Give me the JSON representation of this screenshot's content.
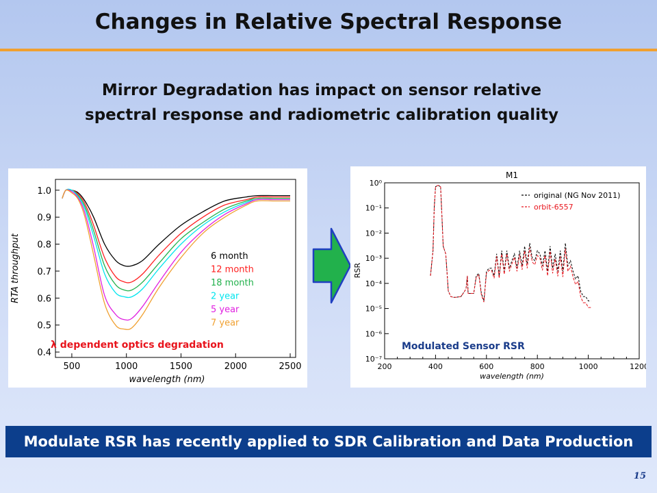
{
  "slide": {
    "title": "Changes in Relative Spectral Response",
    "subtitle_line1": "Mirror Degradation has impact on sensor relative",
    "subtitle_line2": "spectral response and radiometric calibration quality",
    "bottom_banner": "Modulate RSR has recently applied to SDR Calibration and Data Production",
    "page_number": "15",
    "colors": {
      "title_rule": "#f0a030",
      "banner_bg": "#0c3e8c",
      "arrow": "#22b14c",
      "arrow_outline": "#2040c0"
    },
    "arrow_icon": "right-arrow-icon"
  },
  "chart_data": [
    {
      "type": "line",
      "xlabel": "wavelength (nm)",
      "ylabel": "RTA throughput",
      "xlim": [
        350,
        2550
      ],
      "ylim": [
        0.38,
        1.04
      ],
      "xticks": [
        "500",
        "1000",
        "1500",
        "2000",
        "2500"
      ],
      "xtick_values": [
        500,
        1000,
        1500,
        2000,
        2500
      ],
      "yticks": [
        "0.4",
        "0.5",
        "0.6",
        "0.7",
        "0.8",
        "0.9",
        "1.0"
      ],
      "ytick_values": [
        0.4,
        0.5,
        0.6,
        0.7,
        0.8,
        0.9,
        1.0
      ],
      "annotation": "λ dependent optics degradation",
      "annotation_color": "#e8141c",
      "legend_position": "right-center",
      "series": [
        {
          "name": "6 month",
          "color": "#000000",
          "x": [
            412,
            445,
            500,
            560,
            620,
            700,
            800,
            900,
            980,
            1050,
            1150,
            1300,
            1500,
            1700,
            1900,
            2100,
            2200,
            2350,
            2500
          ],
          "y": [
            0.97,
            1.0,
            1.0,
            0.99,
            0.96,
            0.9,
            0.8,
            0.74,
            0.72,
            0.72,
            0.74,
            0.8,
            0.87,
            0.92,
            0.96,
            0.975,
            0.98,
            0.98,
            0.98
          ]
        },
        {
          "name": "12 month",
          "color": "#ff2020",
          "x": [
            412,
            445,
            500,
            560,
            620,
            700,
            800,
            900,
            980,
            1050,
            1150,
            1300,
            1500,
            1700,
            1900,
            2100,
            2200,
            2350,
            2500
          ],
          "y": [
            0.97,
            1.0,
            1.0,
            0.985,
            0.95,
            0.87,
            0.75,
            0.68,
            0.66,
            0.66,
            0.69,
            0.76,
            0.84,
            0.9,
            0.945,
            0.965,
            0.975,
            0.975,
            0.975
          ]
        },
        {
          "name": "18 month",
          "color": "#22b14c",
          "x": [
            412,
            445,
            500,
            560,
            620,
            700,
            800,
            900,
            980,
            1050,
            1150,
            1300,
            1500,
            1700,
            1900,
            2100,
            2200,
            2350,
            2500
          ],
          "y": [
            0.97,
            1.0,
            1.0,
            0.98,
            0.94,
            0.85,
            0.72,
            0.65,
            0.63,
            0.63,
            0.66,
            0.73,
            0.82,
            0.88,
            0.93,
            0.96,
            0.97,
            0.97,
            0.97
          ]
        },
        {
          "name": "2 year",
          "color": "#00e5ee",
          "x": [
            412,
            445,
            500,
            560,
            620,
            700,
            800,
            900,
            980,
            1050,
            1150,
            1300,
            1500,
            1700,
            1900,
            2100,
            2200,
            2350,
            2500
          ],
          "y": [
            0.97,
            1.0,
            1.0,
            0.975,
            0.93,
            0.83,
            0.69,
            0.62,
            0.605,
            0.605,
            0.635,
            0.71,
            0.8,
            0.87,
            0.92,
            0.955,
            0.965,
            0.965,
            0.965
          ]
        },
        {
          "name": "5 year",
          "color": "#e020e0",
          "x": [
            412,
            445,
            500,
            560,
            620,
            700,
            800,
            900,
            980,
            1050,
            1150,
            1300,
            1500,
            1700,
            1900,
            2100,
            2200,
            2350,
            2500
          ],
          "y": [
            0.97,
            1.0,
            0.995,
            0.97,
            0.915,
            0.79,
            0.61,
            0.54,
            0.52,
            0.525,
            0.57,
            0.66,
            0.77,
            0.85,
            0.91,
            0.95,
            0.965,
            0.965,
            0.965
          ]
        },
        {
          "name": "7 year",
          "color": "#f0a030",
          "x": [
            412,
            445,
            500,
            560,
            620,
            700,
            800,
            900,
            980,
            1050,
            1150,
            1300,
            1500,
            1700,
            1900,
            2100,
            2200,
            2350,
            2500
          ],
          "y": [
            0.97,
            1.0,
            0.99,
            0.965,
            0.9,
            0.76,
            0.58,
            0.5,
            0.485,
            0.49,
            0.54,
            0.64,
            0.75,
            0.84,
            0.9,
            0.945,
            0.96,
            0.96,
            0.96
          ]
        }
      ]
    },
    {
      "type": "line",
      "title": "M1",
      "xlabel": "wavelength (nm)",
      "ylabel": "RSR",
      "yscale": "log",
      "xlim": [
        200,
        1200
      ],
      "ylim": [
        1e-07,
        1
      ],
      "xticks": [
        "200",
        "400",
        "600",
        "800",
        "1000",
        "1200"
      ],
      "xtick_values": [
        200,
        400,
        600,
        800,
        1000,
        1200
      ],
      "yticks": [
        "10⁻⁷",
        "10⁻⁶",
        "10⁻⁵",
        "10⁻⁴",
        "10⁻³",
        "10⁻²",
        "10⁻¹",
        "10⁰"
      ],
      "ytick_values": [
        1e-07,
        1e-06,
        1e-05,
        0.0001,
        0.001,
        0.01,
        0.1,
        1
      ],
      "annotation": "Modulated Sensor RSR",
      "annotation_color": "#1a3c8a",
      "legend_position": "top-right",
      "series": [
        {
          "name": "original (NG Nov 2011)",
          "color": "#000000",
          "x": [
            380,
            390,
            395,
            400,
            410,
            420,
            425,
            430,
            440,
            445,
            450,
            460,
            470,
            480,
            500,
            520,
            525,
            528,
            535,
            550,
            560,
            570,
            580,
            590,
            600,
            610,
            620,
            630,
            640,
            650,
            660,
            670,
            680,
            690,
            700,
            710,
            720,
            730,
            740,
            750,
            760,
            770,
            780,
            790,
            800,
            810,
            820,
            830,
            840,
            850,
            860,
            870,
            880,
            890,
            900,
            910,
            920,
            930,
            940,
            950,
            960,
            970,
            980,
            990,
            1000,
            1010
          ],
          "y": [
            0.0002,
            0.002,
            0.1,
            0.7,
            0.8,
            0.7,
            0.05,
            0.003,
            0.0015,
            0.0003,
            5e-05,
            3e-05,
            2.8e-05,
            2.8e-05,
            3e-05,
            6e-05,
            0.0002,
            4e-05,
            4e-05,
            4e-05,
            0.0002,
            0.00025,
            4e-05,
            2e-05,
            0.0003,
            0.0004,
            0.0004,
            0.0002,
            0.0015,
            0.0002,
            0.002,
            0.0003,
            0.002,
            0.0004,
            0.0008,
            0.0015,
            0.0004,
            0.002,
            0.0005,
            0.003,
            0.0006,
            0.004,
            0.001,
            0.0008,
            0.002,
            0.0015,
            0.0005,
            0.002,
            0.0003,
            0.003,
            0.0004,
            0.0015,
            0.0003,
            0.002,
            0.0003,
            0.004,
            0.0005,
            0.0008,
            0.0003,
            0.00015,
            0.0002,
            5e-05,
            3e-05,
            3e-05,
            2e-05,
            2e-05
          ]
        },
        {
          "name": "orbit-6557",
          "color": "#e8141c",
          "x": [
            380,
            390,
            395,
            400,
            410,
            420,
            425,
            430,
            440,
            445,
            450,
            460,
            470,
            480,
            500,
            520,
            525,
            528,
            535,
            550,
            560,
            570,
            580,
            590,
            600,
            610,
            620,
            630,
            640,
            650,
            660,
            670,
            680,
            690,
            700,
            710,
            720,
            730,
            740,
            750,
            760,
            770,
            780,
            790,
            800,
            810,
            820,
            830,
            840,
            850,
            860,
            870,
            880,
            890,
            900,
            910,
            920,
            930,
            940,
            950,
            960,
            970,
            980,
            990,
            1000,
            1010
          ],
          "y": [
            0.0002,
            0.002,
            0.1,
            0.7,
            0.8,
            0.7,
            0.05,
            0.003,
            0.0015,
            0.0003,
            5e-05,
            3e-05,
            2.8e-05,
            2.8e-05,
            3e-05,
            6e-05,
            0.0002,
            4e-05,
            4e-05,
            4e-05,
            0.00018,
            0.00022,
            3.5e-05,
            1.8e-05,
            0.00025,
            0.00033,
            0.00033,
            0.00016,
            0.0012,
            0.00016,
            0.0015,
            0.00023,
            0.0015,
            0.0003,
            0.0006,
            0.0011,
            0.0003,
            0.0014,
            0.00035,
            0.002,
            0.0004,
            0.0027,
            0.0007,
            0.00055,
            0.0013,
            0.001,
            0.00033,
            0.0013,
            0.0002,
            0.0019,
            0.00025,
            0.00095,
            0.00019,
            0.0012,
            0.00018,
            0.0024,
            0.0003,
            0.00048,
            0.00018,
            9e-05,
            0.00012,
            3e-05,
            1.7e-05,
            1.7e-05,
            1.1e-05,
            1.1e-05
          ]
        }
      ]
    }
  ]
}
